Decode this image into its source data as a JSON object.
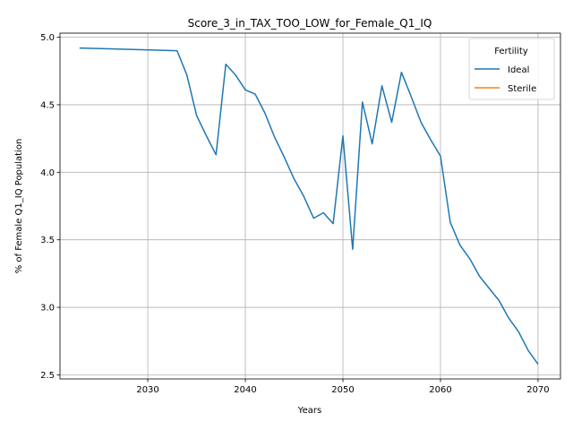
{
  "chart_data": {
    "type": "line",
    "title": "Score_3_in_TAX_TOO_LOW_for_Female_Q1_IQ",
    "xlabel": "Years",
    "ylabel": "% of Female Q1_IQ Population",
    "xlim": [
      2021,
      2072.3
    ],
    "ylim": [
      2.47,
      5.03
    ],
    "xticks": [
      2030,
      2040,
      2050,
      2060,
      2070
    ],
    "yticks": [
      2.5,
      3.0,
      3.5,
      4.0,
      4.5,
      5.0
    ],
    "grid": true,
    "legend": {
      "title": "Fertility",
      "placement": "top-right",
      "entries": [
        "Ideal",
        "Sterile"
      ]
    },
    "series": [
      {
        "name": "Ideal",
        "color": "#1f77b4",
        "x": [
          2023,
          2033,
          2034,
          2035,
          2036,
          2037,
          2038,
          2039,
          2040,
          2041,
          2042,
          2043,
          2044,
          2045,
          2046,
          2047,
          2048,
          2049,
          2050,
          2051,
          2052,
          2053,
          2054,
          2055,
          2056,
          2057,
          2058,
          2059,
          2060,
          2061,
          2062,
          2063,
          2064,
          2065,
          2066,
          2067,
          2068,
          2069,
          2070
        ],
        "y": [
          4.92,
          4.9,
          4.72,
          4.42,
          4.27,
          4.13,
          4.8,
          4.72,
          4.61,
          4.58,
          4.44,
          4.26,
          4.11,
          3.95,
          3.82,
          3.66,
          3.7,
          3.62,
          4.27,
          3.43,
          4.52,
          4.21,
          4.64,
          4.37,
          4.74,
          4.56,
          4.37,
          4.24,
          4.12,
          3.63,
          3.46,
          3.36,
          3.23,
          3.14,
          3.05,
          2.92,
          2.82,
          2.68,
          2.58
        ]
      },
      {
        "name": "Sterile",
        "color": "#ff7f0e",
        "x": [],
        "y": []
      }
    ]
  }
}
